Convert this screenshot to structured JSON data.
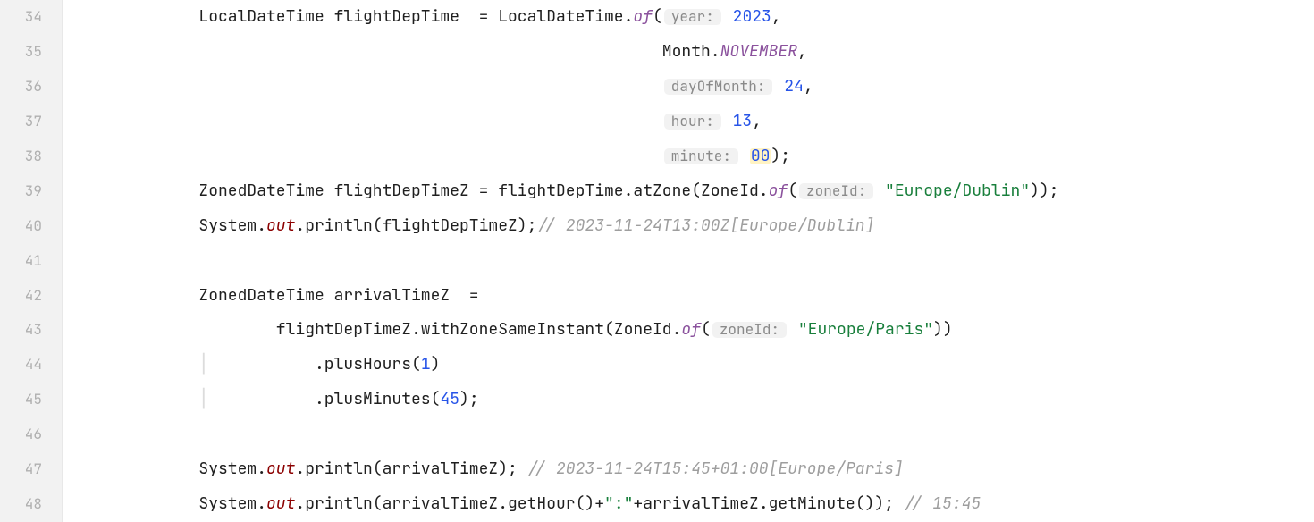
{
  "gutter": {
    "start": 34,
    "end": 48
  },
  "colors": {
    "gutter_bg": "#f2f2f2",
    "gutter_fg": "#b0b0b0",
    "code_bg": "#ffffff",
    "text": "#1f1f1f",
    "num": "#2754e8",
    "str": "#197f3c",
    "field": "#8b0000",
    "static": "#8b529d",
    "comment": "#9e9e9e",
    "hint_bg": "#f2f2f2",
    "hint_fg": "#8a8a8a",
    "hl": "#fff3c4"
  },
  "hints": {
    "year": "year:",
    "dayOfMonth": "dayOfMonth:",
    "hour": "hour:",
    "minute": "minute:",
    "zoneId": "zoneId:"
  },
  "code": {
    "l34": {
      "pre": "        LocalDateTime flightDepTime  = LocalDateTime.",
      "of": "of",
      "open": "(",
      "space": " ",
      "val": "2023",
      "comma": ","
    },
    "l35": {
      "pad": "                                                        ",
      "month": "Month.",
      "nov": "NOVEMBER",
      "comma": ","
    },
    "l36": {
      "pad": "                                                        ",
      "val": "24",
      "comma": ","
    },
    "l37": {
      "pad": "                                                        ",
      "val": "13",
      "comma": ","
    },
    "l38": {
      "pad": "                                                        ",
      "val": "00",
      "close": ");"
    },
    "l39": {
      "pre": "        ZonedDateTime flightDepTimeZ = flightDepTime.atZone(ZoneId.",
      "of": "of",
      "open": "(",
      "space": " ",
      "str": "\"Europe/Dublin\"",
      "close": "));"
    },
    "l40": {
      "pre": "        System.",
      "out": "out",
      "mid": ".println(flightDepTimeZ);",
      "cmt": "// 2023-11-24T13:00Z[Europe/Dublin]"
    },
    "l42": {
      "pre": "        ZonedDateTime arrivalTimeZ  ="
    },
    "l43": {
      "pre": "                flightDepTimeZ.withZoneSameInstant(ZoneId.",
      "of": "of",
      "open": "(",
      "space": " ",
      "str": "\"Europe/Paris\"",
      "close": "))"
    },
    "l44": {
      "guide": "        │           ",
      "pre": ".plusHours(",
      "val": "1",
      "close": ")"
    },
    "l45": {
      "guide": "        │           ",
      "pre": ".plusMinutes(",
      "val": "45",
      "close": ");"
    },
    "l47": {
      "pre": "        System.",
      "out": "out",
      "mid": ".println(arrivalTimeZ); ",
      "cmt": "// 2023-11-24T15:45+01:00[Europe/Paris]"
    },
    "l48": {
      "pre": "        System.",
      "out": "out",
      "mid1": ".println(arrivalTimeZ.getHour()+",
      "str": "\":\"",
      "mid2": "+arrivalTimeZ.getMinute()); ",
      "cmt": "// 15:45"
    }
  }
}
